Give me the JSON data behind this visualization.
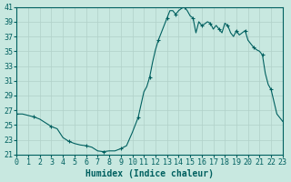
{
  "title": "",
  "xlabel": "Humidex (Indice chaleur)",
  "ylabel": "",
  "background_color": "#c8e8e0",
  "grid_color": "#b0d0c8",
  "line_color": "#006060",
  "xlim": [
    0,
    23
  ],
  "ylim": [
    21,
    41
  ],
  "yticks": [
    21,
    23,
    25,
    27,
    29,
    31,
    33,
    35,
    37,
    39,
    41
  ],
  "xticks": [
    0,
    1,
    2,
    3,
    4,
    5,
    6,
    7,
    8,
    9,
    10,
    11,
    12,
    13,
    14,
    15,
    16,
    17,
    18,
    19,
    20,
    21,
    22,
    23
  ],
  "hours": [
    0,
    0.5,
    1,
    1.5,
    2,
    2.5,
    3,
    3.5,
    4,
    4.5,
    5,
    5.5,
    6,
    6.5,
    7,
    7.5,
    8,
    8.5,
    9,
    9.5,
    10,
    10.5,
    11,
    11.25,
    11.5,
    11.75,
    12,
    12.25,
    12.5,
    12.75,
    13,
    13.25,
    13.5,
    13.75,
    14,
    14.25,
    14.5,
    14.75,
    15,
    15.25,
    15.5,
    15.75,
    16,
    16.25,
    16.5,
    16.75,
    17,
    17.25,
    17.5,
    17.75,
    18,
    18.25,
    18.5,
    18.75,
    19,
    19.25,
    19.5,
    19.75,
    20,
    20.25,
    20.5,
    20.75,
    21,
    21.25,
    21.5,
    21.75,
    22,
    22.5,
    23
  ],
  "values": [
    26.5,
    26.5,
    26.3,
    26.1,
    25.8,
    25.3,
    24.8,
    24.5,
    23.3,
    22.8,
    22.5,
    22.3,
    22.2,
    22.0,
    21.5,
    21.4,
    21.5,
    21.5,
    21.8,
    22.2,
    24.0,
    26.0,
    29.5,
    30.2,
    31.5,
    33.5,
    35.2,
    36.5,
    37.5,
    38.5,
    39.5,
    40.5,
    40.5,
    40.0,
    40.5,
    40.8,
    41.0,
    40.5,
    39.8,
    39.5,
    37.5,
    39.0,
    38.5,
    38.7,
    39.0,
    38.8,
    38.0,
    38.5,
    38.0,
    37.5,
    38.8,
    38.5,
    37.5,
    37.0,
    37.8,
    37.2,
    37.5,
    37.8,
    36.5,
    36.0,
    35.5,
    35.2,
    35.0,
    34.5,
    32.0,
    30.5,
    29.8,
    26.5,
    25.5
  ]
}
